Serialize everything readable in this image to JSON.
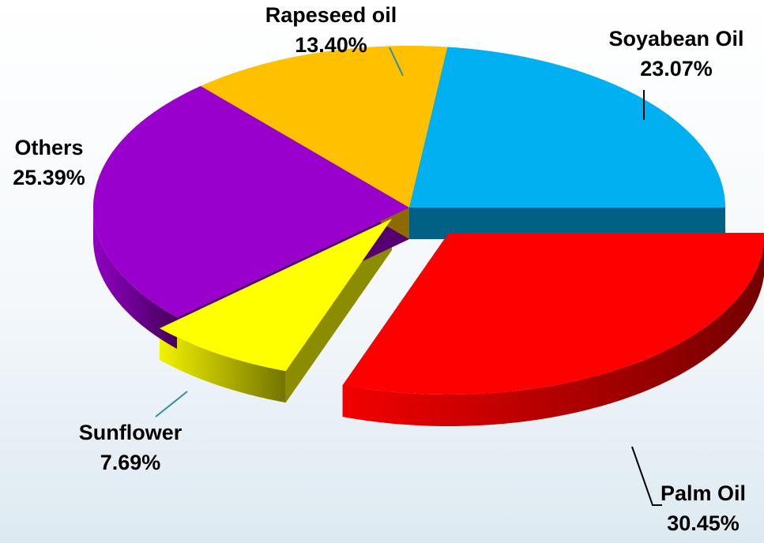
{
  "chart_data": {
    "type": "pie",
    "style": "3d-exploded",
    "title": "",
    "slices": [
      {
        "label": "Palm Oil",
        "value": 30.45,
        "value_label": "30.45%",
        "color": "#ff0000",
        "exploded": true
      },
      {
        "label": "Sunflower",
        "value": 7.69,
        "value_label": "7.69%",
        "color": "#ffff00",
        "exploded": true
      },
      {
        "label": "Others",
        "value": 25.39,
        "value_label": "25.39%",
        "color": "#9900cc",
        "exploded": false
      },
      {
        "label": "Rapeseed oil",
        "value": 13.4,
        "value_label": "13.40%",
        "color": "#ffc000",
        "exploded": false
      },
      {
        "label": "Soyabean Oil",
        "value": 23.07,
        "value_label": "23.07%",
        "color": "#00b0f0",
        "exploded": false
      }
    ]
  }
}
